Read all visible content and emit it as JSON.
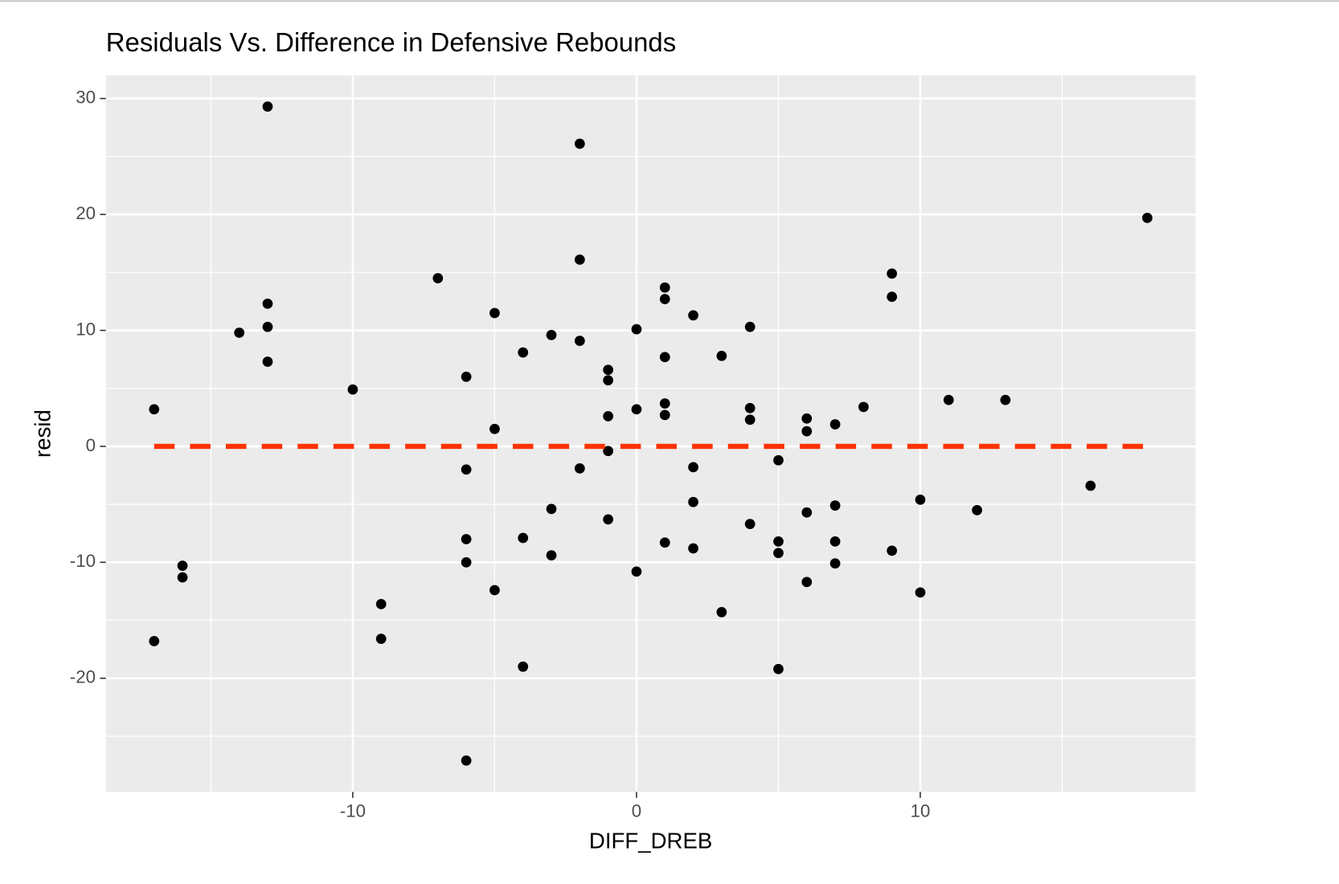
{
  "chart_data": {
    "type": "scatter",
    "title": "Residuals Vs. Difference in Defensive Rebounds",
    "x_label": "DIFF_DREB",
    "y_label": "resid",
    "x": [
      -17,
      -17,
      -16,
      -16,
      -14,
      -13,
      -13,
      -13,
      -13,
      -10,
      -9,
      -9,
      -7,
      -6,
      -6,
      -6,
      -6,
      -6,
      -5,
      -5,
      -5,
      -4,
      -4,
      -4,
      -3,
      -3,
      -3,
      -2,
      -2,
      -2,
      -2,
      -1,
      -1,
      -1,
      -1,
      -1,
      0,
      0,
      0,
      1,
      1,
      1,
      1,
      1,
      1,
      2,
      2,
      2,
      2,
      3,
      3,
      4,
      4,
      4,
      4,
      5,
      5,
      5,
      5,
      6,
      6,
      6,
      6,
      7,
      7,
      7,
      7,
      8,
      9,
      9,
      9,
      10,
      10,
      11,
      12,
      13,
      16,
      18
    ],
    "values": [
      3.2,
      -16.8,
      -10.3,
      -11.3,
      9.8,
      29.3,
      12.3,
      10.3,
      7.3,
      4.9,
      -13.6,
      -16.6,
      14.5,
      6.0,
      -2.0,
      -8.0,
      -10.0,
      -27.1,
      11.5,
      1.5,
      -12.4,
      8.1,
      -7.9,
      -19.0,
      9.6,
      -5.4,
      -9.4,
      26.1,
      16.1,
      9.1,
      -1.9,
      6.6,
      5.7,
      2.6,
      -0.4,
      -6.3,
      10.1,
      3.2,
      -10.8,
      13.7,
      12.7,
      7.7,
      3.7,
      2.7,
      -8.3,
      11.3,
      -1.8,
      -4.8,
      -8.8,
      7.8,
      -14.3,
      10.3,
      3.3,
      2.3,
      -6.7,
      -1.2,
      -8.2,
      -9.2,
      -19.2,
      2.4,
      1.3,
      -5.7,
      -11.7,
      1.9,
      -5.1,
      -8.2,
      -10.1,
      3.4,
      14.9,
      12.9,
      -9.0,
      -4.6,
      -12.6,
      4.0,
      -5.5,
      4.0,
      -3.4,
      19.7
    ],
    "color": "#000000",
    "xlim": [
      -18.7,
      19.7
    ],
    "ylim": [
      -29.8,
      32
    ],
    "xticks": [
      -10,
      0,
      10
    ],
    "yticks": [
      -20,
      -10,
      0,
      10,
      20,
      30
    ],
    "x_minor_ticks": [
      -15,
      -5,
      5,
      15
    ],
    "y_minor_ticks": [
      -25,
      -15,
      -5,
      5,
      15,
      25
    ],
    "grid": true,
    "hline": {
      "y": 0,
      "x": [
        -17,
        18
      ],
      "color": "#ff3300",
      "style": "dashed"
    }
  }
}
